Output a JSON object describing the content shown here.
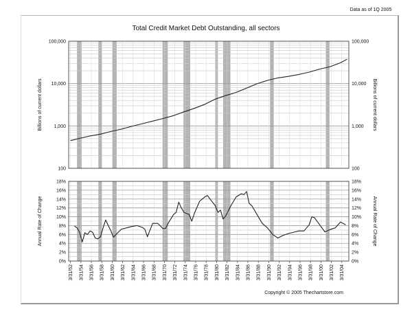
{
  "meta_note": "Data as of 1Q 2005",
  "copyright": "Copyright © 2005 Thechartstore.com",
  "chart_data": [
    {
      "type": "line",
      "title": "Total Credit Market Debt Outstanding, all sectors",
      "ylabel": "Billions of current dollars",
      "yscale": "log",
      "ylim": [
        100,
        100000
      ],
      "y_tick_labels": [
        "100",
        "1,000",
        "10,000",
        "100,000"
      ],
      "y_tick_values": [
        100,
        1000,
        10000,
        100000
      ],
      "grid": true,
      "line_color": "#222222",
      "recession_shade_color": "#b4b4b4",
      "series": [
        {
          "x": [
            1952.25,
            1954,
            1956,
            1958,
            1960,
            1962,
            1964,
            1966,
            1968,
            1970,
            1972,
            1974,
            1976,
            1978,
            1980,
            1982,
            1984,
            1986,
            1988,
            1990,
            1992,
            1994,
            1996,
            1998,
            2000,
            2002,
            2004,
            2005.25
          ],
          "values": [
            450,
            510,
            580,
            640,
            740,
            840,
            980,
            1130,
            1300,
            1500,
            1750,
            2150,
            2600,
            3250,
            4300,
            5200,
            6200,
            7800,
            9900,
            11900,
            13600,
            14800,
            16400,
            18600,
            22000,
            25000,
            31000,
            37500
          ]
        }
      ]
    },
    {
      "type": "line",
      "ylabel": "Annual Rate of Change",
      "ylim": [
        0,
        18
      ],
      "y_tick_labels": [
        "0%",
        "2%",
        "4%",
        "6%",
        "8%",
        "10%",
        "12%",
        "14%",
        "16%",
        "18%"
      ],
      "y_tick_values": [
        0,
        2,
        4,
        6,
        8,
        10,
        12,
        14,
        16,
        18
      ],
      "x_tick_labels": [
        "3/31/52",
        "3/31/54",
        "3/31/56",
        "3/31/58",
        "3/31/60",
        "3/31/62",
        "3/31/64",
        "3/31/66",
        "3/31/68",
        "3/31/70",
        "3/31/72",
        "3/31/74",
        "3/31/76",
        "3/31/78",
        "3/31/80",
        "3/31/82",
        "3/31/84",
        "3/31/86",
        "3/31/88",
        "3/31/90",
        "3/31/92",
        "3/31/94",
        "3/31/96",
        "3/31/98",
        "3/31/00",
        "3/31/02",
        "3/31/04"
      ],
      "x_tick_values": [
        1952.25,
        1954.25,
        1956.25,
        1958.25,
        1960.25,
        1962.25,
        1964.25,
        1966.25,
        1968.25,
        1970.25,
        1972.25,
        1974.25,
        1976.25,
        1978.25,
        1980.25,
        1982.25,
        1984.25,
        1986.25,
        1988.25,
        1990.25,
        1992.25,
        1994.25,
        1996.25,
        1998.25,
        2000.25,
        2002.25,
        2004.25
      ],
      "grid": true,
      "series": [
        {
          "x": [
            1953.0,
            1953.5,
            1954.0,
            1954.5,
            1955.0,
            1955.5,
            1956.0,
            1956.5,
            1957.0,
            1957.5,
            1958.0,
            1958.5,
            1959.0,
            1959.5,
            1960.0,
            1960.5,
            1961.0,
            1962.0,
            1963.0,
            1964.0,
            1965.0,
            1966.0,
            1966.5,
            1967.0,
            1968.0,
            1969.0,
            1970.0,
            1970.5,
            1971.0,
            1972.0,
            1972.5,
            1973.0,
            1973.5,
            1974.0,
            1975.0,
            1975.5,
            1976.0,
            1977.0,
            1978.0,
            1978.5,
            1979.0,
            1980.0,
            1980.5,
            1981.0,
            1981.5,
            1982.0,
            1983.0,
            1984.0,
            1985.0,
            1985.5,
            1986.0,
            1986.5,
            1987.0,
            1988.0,
            1989.0,
            1990.0,
            1991.0,
            1991.5,
            1992.0,
            1993.0,
            1994.0,
            1995.0,
            1996.0,
            1997.0,
            1998.0,
            1998.5,
            1999.0,
            2000.0,
            2001.0,
            2002.0,
            2003.0,
            2004.0,
            2005.0
          ],
          "values": [
            7.9,
            7.5,
            6.5,
            4.3,
            6.4,
            6.0,
            6.8,
            6.5,
            5.2,
            5.0,
            5.5,
            7.5,
            9.3,
            8.0,
            6.8,
            5.4,
            6.0,
            7.2,
            7.5,
            7.8,
            8.0,
            7.6,
            7.2,
            5.5,
            8.5,
            8.5,
            7.3,
            7.4,
            8.6,
            10.5,
            11.0,
            13.3,
            12.0,
            11.0,
            10.5,
            9.0,
            10.8,
            13.5,
            14.5,
            14.8,
            14.0,
            12.5,
            11.0,
            11.5,
            9.5,
            10.2,
            12.5,
            14.5,
            15.2,
            15.0,
            15.7,
            13.0,
            12.5,
            10.5,
            8.5,
            7.5,
            6.0,
            5.6,
            5.2,
            5.8,
            6.2,
            6.5,
            6.8,
            6.8,
            8.2,
            10.0,
            9.8,
            8.2,
            6.6,
            7.1,
            7.5,
            8.8,
            8.2
          ]
        }
      ],
      "recession_periods": [
        [
          1953.5,
          1954.4
        ],
        [
          1957.6,
          1958.3
        ],
        [
          1960.3,
          1961.1
        ],
        [
          1969.9,
          1970.9
        ],
        [
          1973.9,
          1975.2
        ],
        [
          1980.0,
          1980.5
        ],
        [
          1981.5,
          1982.9
        ],
        [
          1990.5,
          1991.2
        ],
        [
          2001.2,
          2001.9
        ]
      ]
    }
  ]
}
